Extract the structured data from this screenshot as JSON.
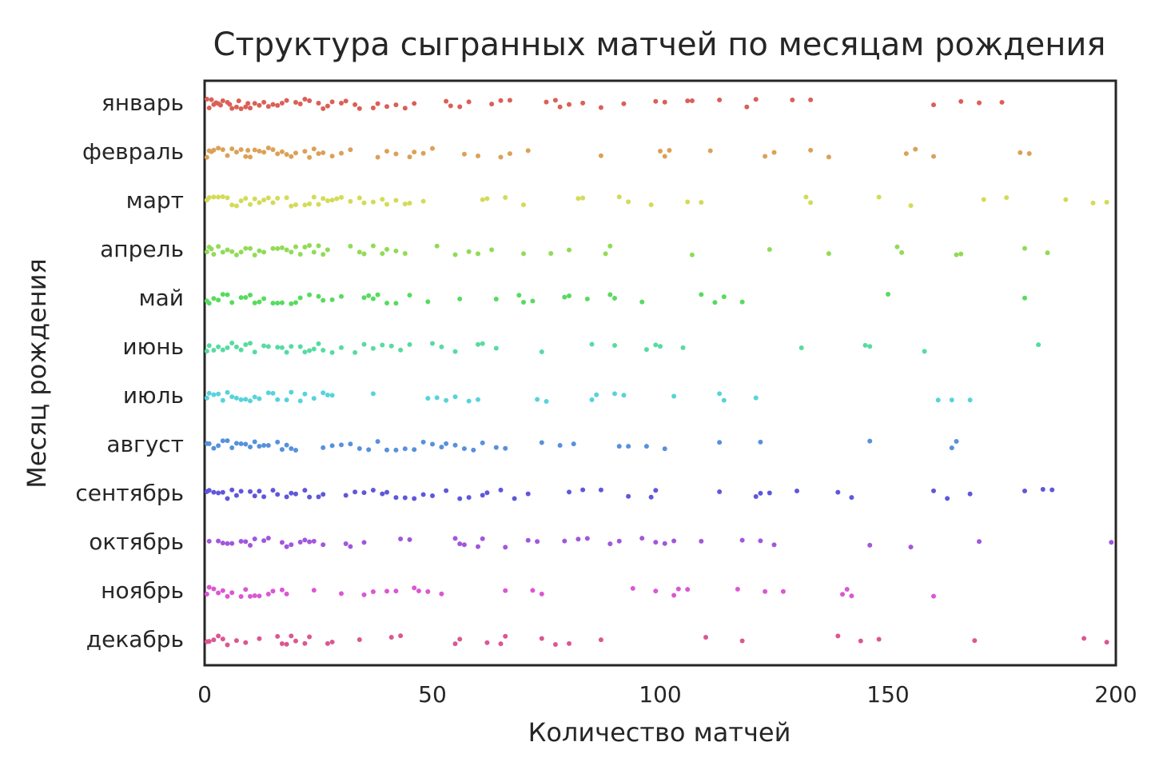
{
  "chart_data": {
    "type": "strip",
    "title": "Структура сыгранных матчей по месяцам рождения",
    "x_label": "Количество матчей",
    "y_label": "Месяц рождения",
    "xlim": [
      0,
      200
    ],
    "xticks": [
      0,
      50,
      100,
      150,
      200
    ],
    "categories": [
      "январь",
      "февраль",
      "март",
      "апрель",
      "май",
      "июнь",
      "июль",
      "август",
      "сентябрь",
      "октябрь",
      "ноябрь",
      "декабрь"
    ],
    "colors": [
      "#db5f57",
      "#dba157",
      "#d3db57",
      "#91db57",
      "#57db5f",
      "#57dba1",
      "#57d3db",
      "#5791db",
      "#5f57db",
      "#a157db",
      "#db57d3",
      "#db5791"
    ],
    "values": [
      [
        0.5,
        1,
        1.5,
        2,
        2.5,
        3,
        3.5,
        4,
        5,
        5.5,
        6,
        7,
        7.5,
        8,
        9,
        9.5,
        10,
        11,
        12,
        13,
        14,
        15,
        16,
        17,
        18,
        20,
        21,
        22,
        23,
        25,
        26,
        27,
        28,
        30,
        31,
        33,
        34,
        37,
        38,
        40,
        42,
        44,
        46,
        53,
        54,
        56,
        58,
        63,
        65,
        67,
        75,
        77,
        78,
        80,
        83,
        87,
        92,
        99,
        101,
        106,
        107,
        113,
        119,
        121,
        129,
        133,
        160,
        166,
        170,
        175
      ],
      [
        0.5,
        1,
        1.5,
        2,
        3,
        4,
        5,
        6,
        7,
        8,
        9,
        9.5,
        10,
        11,
        12,
        13,
        14,
        15,
        16,
        17,
        18,
        19,
        20,
        22,
        23,
        24,
        25,
        26,
        28,
        30,
        32,
        38,
        40,
        42,
        45,
        46,
        48,
        50,
        57,
        60,
        65,
        67,
        71,
        87,
        100,
        101,
        102,
        111,
        123,
        125,
        133,
        137,
        154,
        156,
        160,
        179,
        181
      ],
      [
        0.5,
        1,
        2,
        3,
        4,
        5,
        6,
        7,
        8,
        9,
        10,
        11,
        12,
        13,
        14,
        15,
        16,
        18,
        19,
        20,
        22,
        23,
        24,
        25,
        26,
        27,
        28,
        29,
        30,
        32,
        34,
        35,
        37,
        39,
        40,
        42,
        44,
        45,
        48,
        61,
        62,
        66,
        70,
        82,
        83,
        91,
        93,
        98,
        106,
        109,
        132,
        133,
        148,
        155,
        171,
        176,
        189,
        195,
        198
      ],
      [
        0.5,
        1,
        1.5,
        2,
        3,
        4,
        5,
        6,
        7,
        8,
        9,
        10,
        11,
        12,
        13,
        15,
        16,
        17,
        18,
        19,
        20,
        21,
        22,
        23,
        24,
        25,
        26,
        27,
        32,
        34,
        35,
        37,
        39,
        40,
        42,
        44,
        51,
        55,
        58,
        60,
        63,
        70,
        76,
        80,
        88,
        89,
        107,
        124,
        137,
        152,
        153,
        165,
        166,
        180,
        185
      ],
      [
        0.5,
        1,
        2,
        3,
        4,
        5,
        6,
        8,
        9,
        10,
        11,
        12,
        13,
        15,
        16,
        17,
        19,
        20,
        21,
        23,
        25,
        26,
        28,
        30,
        35,
        36,
        37,
        38,
        40,
        42,
        45,
        49,
        56,
        64,
        69,
        70,
        72,
        79,
        80,
        84,
        89,
        90,
        96,
        109,
        112,
        114,
        118,
        150,
        180
      ],
      [
        0.5,
        1,
        2,
        3,
        4,
        5,
        6,
        7,
        8,
        9,
        10,
        11,
        13,
        14,
        16,
        17,
        18,
        19,
        21,
        22,
        23,
        24,
        25,
        26,
        28,
        30,
        33,
        35,
        37,
        39,
        41,
        43,
        45,
        50,
        52,
        55,
        60,
        61,
        64,
        74,
        85,
        90,
        97,
        99,
        100,
        105,
        131,
        145,
        146,
        158,
        183
      ],
      [
        0.5,
        1,
        2,
        3,
        4,
        5,
        6,
        7,
        8,
        9,
        10,
        11,
        12,
        14,
        15,
        16,
        18,
        19,
        21,
        22,
        24,
        26,
        27,
        28,
        37,
        49,
        51,
        53,
        55,
        58,
        60,
        73,
        75,
        85,
        86,
        90,
        92,
        103,
        113,
        114,
        121,
        161,
        164,
        168
      ],
      [
        0.5,
        1,
        2,
        3,
        4,
        5,
        6,
        7,
        8,
        9,
        10,
        11,
        12,
        13,
        14,
        16,
        17,
        18,
        19,
        20,
        26,
        28,
        30,
        32,
        34,
        36,
        38,
        40,
        42,
        44,
        46,
        48,
        50,
        52,
        53,
        55,
        57,
        59,
        61,
        64,
        66,
        74,
        78,
        81,
        91,
        93,
        97,
        101,
        113,
        122,
        146,
        164,
        165
      ],
      [
        0.5,
        1,
        2,
        3,
        4,
        5,
        6,
        7,
        8,
        10,
        11,
        12,
        13,
        15,
        16,
        18,
        19,
        20,
        22,
        23,
        25,
        26,
        31,
        33,
        35,
        37,
        39,
        40,
        42,
        44,
        46,
        48,
        50,
        53,
        56,
        58,
        61,
        62,
        65,
        68,
        71,
        80,
        83,
        87,
        93,
        98,
        99,
        113,
        121,
        122,
        124,
        130,
        139,
        142,
        160,
        163,
        168,
        180,
        184,
        186
      ],
      [
        1,
        3,
        4,
        5,
        6,
        8,
        9,
        10,
        11,
        13,
        14,
        17,
        18,
        19,
        21,
        22,
        23,
        24,
        26,
        31,
        32,
        35,
        43,
        45,
        55,
        56,
        57,
        60,
        61,
        66,
        71,
        73,
        79,
        82,
        84,
        89,
        91,
        96,
        99,
        101,
        103,
        109,
        118,
        122,
        125,
        146,
        155,
        170,
        199
      ],
      [
        0.5,
        1,
        2,
        3,
        4,
        5,
        6,
        8,
        9,
        10,
        11,
        12,
        14,
        15,
        17,
        18,
        24,
        30,
        35,
        37,
        40,
        42,
        46,
        47,
        49,
        52,
        66,
        72,
        74,
        94,
        99,
        103,
        104,
        106,
        117,
        123,
        127,
        140,
        141,
        142,
        160
      ],
      [
        0.5,
        1,
        2,
        3,
        4,
        5,
        7,
        9,
        12,
        16,
        17,
        18,
        19,
        20,
        22,
        23,
        27,
        28,
        34,
        41,
        43,
        55,
        56,
        62,
        65,
        66,
        74,
        77,
        80,
        87,
        110,
        118,
        139,
        144,
        148,
        169,
        193,
        198
      ]
    ]
  }
}
